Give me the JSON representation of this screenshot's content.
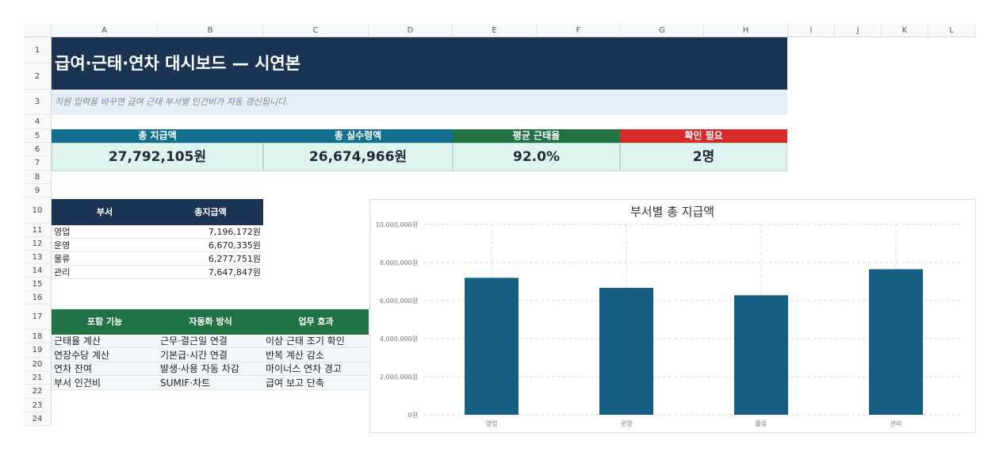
{
  "columns": [
    "A",
    "B",
    "C",
    "D",
    "E",
    "F",
    "G",
    "H",
    "I",
    "J",
    "K",
    "L"
  ],
  "rows": [
    "1",
    "2",
    "3",
    "4",
    "5",
    "6",
    "7",
    "8",
    "9",
    "10",
    "11",
    "12",
    "13",
    "14",
    "15",
    "16",
    "17",
    "18",
    "19",
    "20",
    "21",
    "22",
    "23",
    "24"
  ],
  "title": "급여·근태·연차 대시보드 — 시연본",
  "subtitle": "직원 입력을 바꾸면 급여 근태 부서별 인건비가 자동 갱신됩니다.",
  "kpis": [
    {
      "label": "총 지급액",
      "value": "27,792,105원",
      "color": "#136f8f"
    },
    {
      "label": "총 실수령액",
      "value": "26,674,966원",
      "color": "#136f8f"
    },
    {
      "label": "평균 근태율",
      "value": "92.0%",
      "color": "#217346"
    },
    {
      "label": "확인 필요",
      "value": "2명",
      "color": "#d62b2b"
    }
  ],
  "dept_table": {
    "headers": [
      "부서",
      "총지급액"
    ],
    "rows": [
      [
        "영업",
        "7,196,172원"
      ],
      [
        "운영",
        "6,670,335원"
      ],
      [
        "물류",
        "6,277,751원"
      ],
      [
        "관리",
        "7,647,847원"
      ]
    ]
  },
  "feature_table": {
    "headers": [
      "포함 기능",
      "자동화 방식",
      "업무 효과"
    ],
    "rows": [
      [
        "근태율 계산",
        "근무·결근일 연결",
        "이상 근태 조기 확인"
      ],
      [
        "연장수당 계산",
        "기본급·시간 연결",
        "반복 계산 감소"
      ],
      [
        "연차 잔여",
        "발생·사용 자동 차감",
        "마이너스 연차 경고"
      ],
      [
        "부서 인건비",
        "SUMIF·차트",
        "급여 보고 단축"
      ]
    ]
  },
  "chart_data": {
    "type": "bar",
    "title": "부서별 총 지급액",
    "categories": [
      "영업",
      "운영",
      "물류",
      "관리"
    ],
    "values": [
      7196172,
      6670335,
      6277751,
      7647847
    ],
    "ylim": [
      0,
      10000000
    ],
    "yticks": [
      "0원",
      "2,000,000원",
      "4,000,000원",
      "6,000,000원",
      "8,000,000원",
      "10,000,000원"
    ],
    "grid": true,
    "bar_color": "#175f82"
  }
}
